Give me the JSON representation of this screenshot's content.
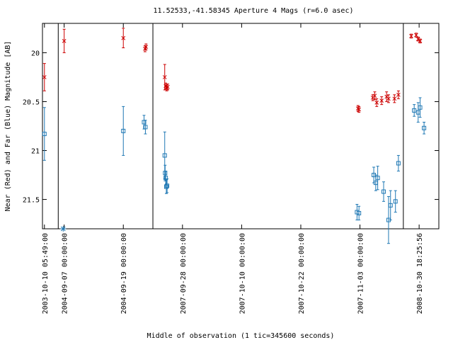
{
  "chart_data": {
    "type": "scatter",
    "title": "11.52533,-41.58345   Aperture 4 Mags (r=6.0 asec)",
    "xlabel": "Middle of observation (1 tic=345600 seconds)",
    "ylabel": "Near (Red) and Far (Blue) Magnitude [AB]",
    "ylim": [
      21.8,
      19.7
    ],
    "y_inverted": true,
    "y_ticks": [
      {
        "value": 20,
        "label": "20"
      },
      {
        "value": 20.5,
        "label": "20.5"
      },
      {
        "value": 21,
        "label": "21"
      },
      {
        "value": 21.5,
        "label": "21.5"
      }
    ],
    "x_ticks": [
      {
        "value": 0,
        "label": "2003-10-10 05:49:00"
      },
      {
        "value": 1,
        "label": "2004-09-07 00:00:00"
      },
      {
        "value": 4,
        "label": "2004-09-19 00:00:00"
      },
      {
        "value": 7,
        "label": "2007-09-28 00:00:00"
      },
      {
        "value": 10,
        "label": "2007-10-10 00:00:00"
      },
      {
        "value": 13,
        "label": "2007-10-22 00:00:00"
      },
      {
        "value": 16,
        "label": "2007-11-03 00:00:00"
      },
      {
        "value": 19,
        "label": "2008-10-30 18:25:56"
      }
    ],
    "xlim": [
      -0.1,
      20
    ],
    "segment_breaks": [
      0.7,
      5.5,
      18.2
    ],
    "series": [
      {
        "name": "Near",
        "color": "#cc0000",
        "marker": "x",
        "points": [
          {
            "x": 0.0,
            "y": 20.25,
            "err": 0.14
          },
          {
            "x": 1.0,
            "y": 19.88,
            "err": 0.12
          },
          {
            "x": 4.0,
            "y": 19.85,
            "err": 0.1
          },
          {
            "x": 5.1,
            "y": 19.96,
            "err": 0.03
          },
          {
            "x": 5.15,
            "y": 19.94,
            "err": 0.03
          },
          {
            "x": 6.1,
            "y": 20.25,
            "err": 0.13
          },
          {
            "x": 6.15,
            "y": 20.34,
            "err": 0.03
          },
          {
            "x": 6.2,
            "y": 20.36,
            "err": 0.03
          },
          {
            "x": 6.25,
            "y": 20.35,
            "err": 0.03
          },
          {
            "x": 15.9,
            "y": 20.57,
            "err": 0.03
          },
          {
            "x": 15.95,
            "y": 20.58,
            "err": 0.03
          },
          {
            "x": 16.65,
            "y": 20.46,
            "err": 0.03
          },
          {
            "x": 16.75,
            "y": 20.44,
            "err": 0.04
          },
          {
            "x": 16.85,
            "y": 20.51,
            "err": 0.04
          },
          {
            "x": 17.1,
            "y": 20.49,
            "err": 0.04
          },
          {
            "x": 17.35,
            "y": 20.45,
            "err": 0.05
          },
          {
            "x": 17.45,
            "y": 20.47,
            "err": 0.04
          },
          {
            "x": 17.75,
            "y": 20.47,
            "err": 0.04
          },
          {
            "x": 17.95,
            "y": 20.43,
            "err": 0.04
          },
          {
            "x": 18.6,
            "y": 19.83,
            "err": 0.02
          },
          {
            "x": 18.85,
            "y": 19.82,
            "err": 0.02
          },
          {
            "x": 18.95,
            "y": 19.86,
            "err": 0.02
          },
          {
            "x": 19.05,
            "y": 19.88,
            "err": 0.02
          }
        ]
      },
      {
        "name": "Far",
        "color": "#1f78b4",
        "marker": "square",
        "points": [
          {
            "x": 0.0,
            "y": 20.83,
            "err": 0.27
          },
          {
            "x": 4.0,
            "y": 20.8,
            "err": 0.25
          },
          {
            "x": 5.05,
            "y": 20.71,
            "err": 0.07
          },
          {
            "x": 5.12,
            "y": 20.76,
            "err": 0.07
          },
          {
            "x": 6.1,
            "y": 21.05,
            "err": 0.24
          },
          {
            "x": 6.12,
            "y": 21.23,
            "err": 0.08
          },
          {
            "x": 6.15,
            "y": 21.28,
            "err": 0.07
          },
          {
            "x": 6.18,
            "y": 21.37,
            "err": 0.07
          },
          {
            "x": 6.22,
            "y": 21.36,
            "err": 0.07
          },
          {
            "x": 15.85,
            "y": 21.63,
            "err": 0.08
          },
          {
            "x": 15.95,
            "y": 21.64,
            "err": 0.07
          },
          {
            "x": 16.7,
            "y": 21.25,
            "err": 0.08
          },
          {
            "x": 16.8,
            "y": 21.33,
            "err": 0.08
          },
          {
            "x": 16.9,
            "y": 21.28,
            "err": 0.12
          },
          {
            "x": 17.2,
            "y": 21.42,
            "err": 0.1
          },
          {
            "x": 17.45,
            "y": 21.71,
            "err": 0.24
          },
          {
            "x": 17.55,
            "y": 21.56,
            "err": 0.15
          },
          {
            "x": 17.8,
            "y": 21.52,
            "err": 0.11
          },
          {
            "x": 17.95,
            "y": 21.13,
            "err": 0.08
          },
          {
            "x": 18.75,
            "y": 20.59,
            "err": 0.06
          },
          {
            "x": 18.95,
            "y": 20.61,
            "err": 0.1
          },
          {
            "x": 19.05,
            "y": 20.56,
            "err": 0.1
          },
          {
            "x": 19.25,
            "y": 20.77,
            "err": 0.06
          }
        ],
        "off_scale": [
          {
            "x": 0.95,
            "y": 21.8,
            "marker": "asterisk"
          }
        ]
      }
    ]
  }
}
